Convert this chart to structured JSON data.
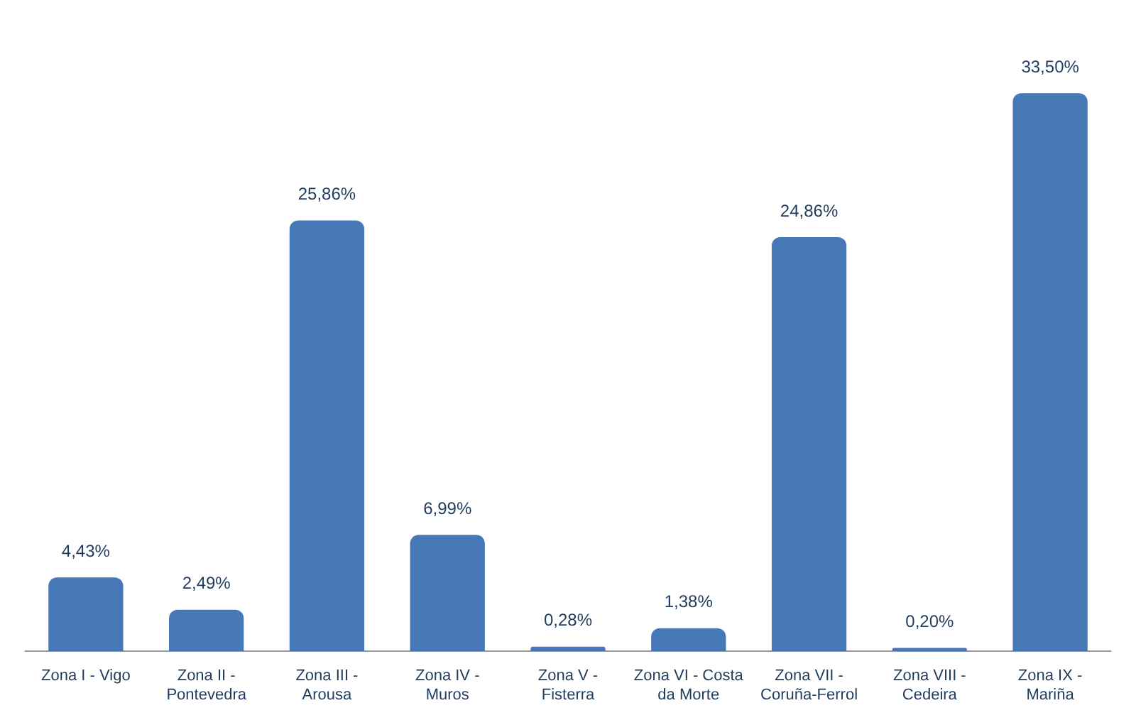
{
  "chart_data": {
    "type": "bar",
    "categories": [
      "Zona I - Vigo",
      "Zona II -\nPontevedra",
      "Zona III -\nArousa",
      "Zona IV -\nMuros",
      "Zona V -\nFisterra",
      "Zona VI - Costa\nda Morte",
      "Zona VII -\nCoruña-Ferrol",
      "Zona VIII -\nCedeira",
      "Zona IX -\nMariña"
    ],
    "values": [
      4.43,
      2.49,
      25.86,
      6.99,
      0.28,
      1.38,
      24.86,
      0.2,
      33.5
    ],
    "value_labels": [
      "4,43%",
      "2,49%",
      "25,86%",
      "6,99%",
      "0,28%",
      "1,38%",
      "24,86%",
      "0,20%",
      "33,50%"
    ],
    "color": "#4678b8",
    "grid": false,
    "legend": false
  }
}
